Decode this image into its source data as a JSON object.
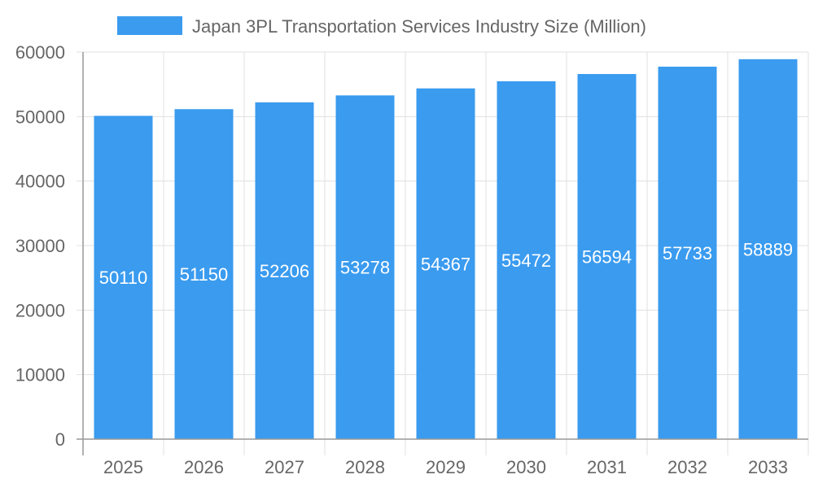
{
  "chart_data": {
    "type": "bar",
    "title": "",
    "xlabel": "",
    "ylabel": "",
    "categories": [
      "2025",
      "2026",
      "2027",
      "2028",
      "2029",
      "2030",
      "2031",
      "2032",
      "2033"
    ],
    "series": [
      {
        "name": "Japan 3PL Transportation Services Industry Size (Million)",
        "values": [
          50110,
          51150,
          52206,
          53278,
          54367,
          55472,
          56594,
          57733,
          58889
        ]
      }
    ],
    "ylim": [
      0,
      60000
    ],
    "yticks": [
      0,
      10000,
      20000,
      30000,
      40000,
      50000,
      60000
    ],
    "grid": true,
    "legend": "top",
    "data_labels": true,
    "colors": {
      "bar": "#3a9bef",
      "label": "#ffffff",
      "text": "#666666",
      "grid": "#e0e0e0"
    }
  }
}
